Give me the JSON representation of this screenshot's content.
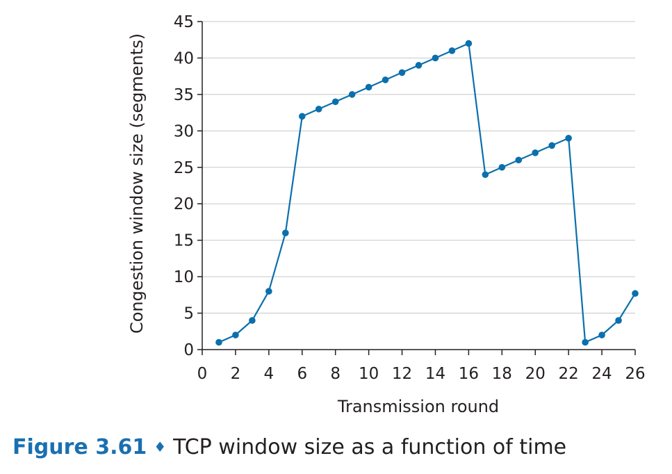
{
  "chart_data": {
    "type": "line",
    "title": "",
    "xlabel": "Transmission round",
    "ylabel": "Congestion window size (segments)",
    "xlim": [
      0,
      26
    ],
    "ylim": [
      0,
      45
    ],
    "xticks": [
      "0",
      "2",
      "4",
      "6",
      "8",
      "10",
      "12",
      "14",
      "16",
      "18",
      "20",
      "22",
      "24",
      "26"
    ],
    "yticks": [
      "0",
      "5",
      "10",
      "15",
      "20",
      "25",
      "30",
      "35",
      "40",
      "45"
    ],
    "grid": "horizontal",
    "line_color": "#0b6fac",
    "series": [
      {
        "x": [
          1,
          2,
          3,
          4,
          5,
          6,
          7,
          8,
          9,
          10,
          11,
          12,
          13,
          14,
          15,
          16,
          17,
          18,
          19,
          20,
          21,
          22,
          23,
          24,
          25,
          26
        ],
        "y": [
          1,
          2,
          4,
          8,
          16,
          32,
          33,
          34,
          35,
          36,
          37,
          38,
          39,
          40,
          41,
          42,
          24,
          25,
          26,
          27,
          28,
          29,
          1,
          2,
          4,
          7.7
        ]
      }
    ]
  },
  "caption": {
    "label": "Figure 3.61",
    "separator": "♦",
    "text": "TCP window size as a function of time"
  }
}
